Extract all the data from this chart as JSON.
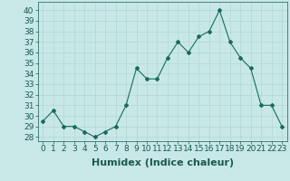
{
  "x": [
    0,
    1,
    2,
    3,
    4,
    5,
    6,
    7,
    8,
    9,
    10,
    11,
    12,
    13,
    14,
    15,
    16,
    17,
    18,
    19,
    20,
    21,
    22,
    23
  ],
  "y": [
    29.5,
    30.5,
    29.0,
    29.0,
    28.5,
    28.0,
    28.5,
    29.0,
    31.0,
    34.5,
    33.5,
    33.5,
    35.5,
    37.0,
    36.0,
    37.5,
    38.0,
    40.0,
    37.0,
    35.5,
    34.5,
    31.0,
    31.0,
    29.0
  ],
  "line_color": "#1a6b5a",
  "marker": "D",
  "marker_size": 2.0,
  "bg_color": "#c8e8e8",
  "grid_color": "#b0d8d0",
  "xlabel": "Humidex (Indice chaleur)",
  "ylabel_ticks": [
    28,
    29,
    30,
    31,
    32,
    33,
    34,
    35,
    36,
    37,
    38,
    39,
    40
  ],
  "ylim": [
    27.6,
    40.8
  ],
  "xlim": [
    -0.5,
    23.5
  ],
  "tick_color": "#1a5a50",
  "label_fontsize": 8,
  "tick_fontsize": 6.5
}
